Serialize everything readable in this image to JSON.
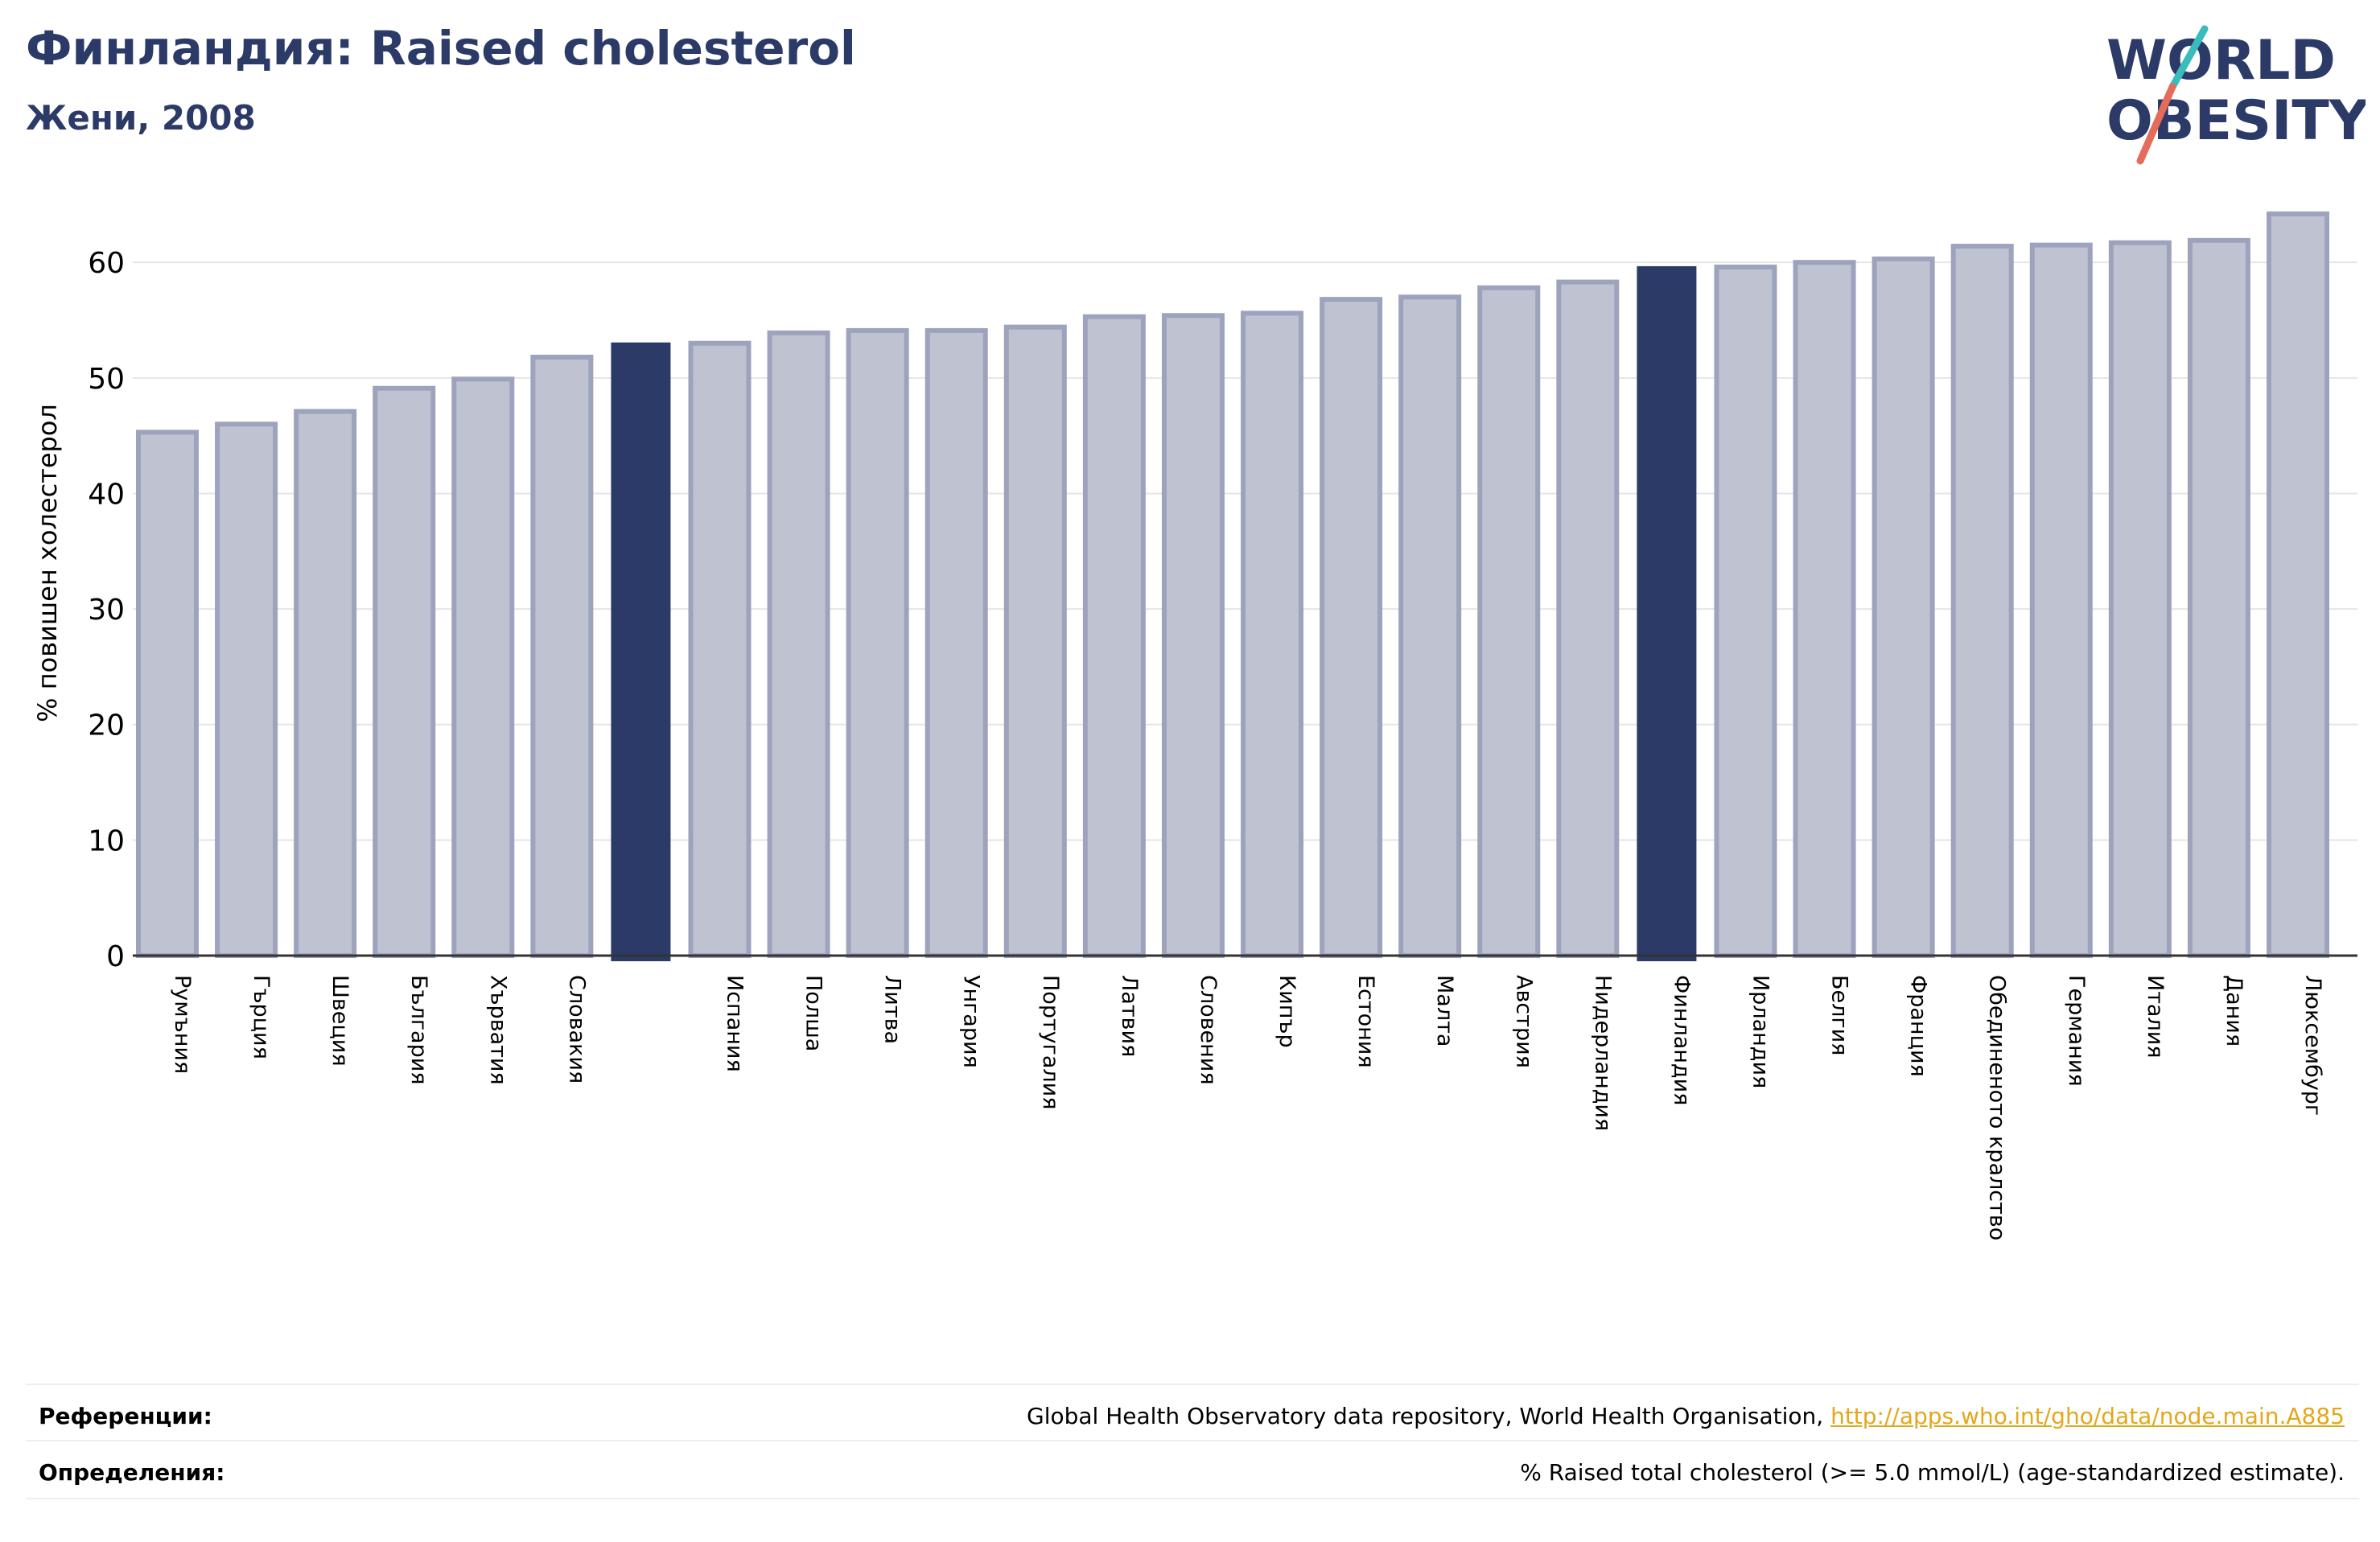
{
  "header": {
    "title": "Финландия: Raised cholesterol",
    "subtitle": "Жени, 2008"
  },
  "logo": {
    "line1": "WORLD",
    "line2": "OBESITY",
    "text_color": "#2b3a67",
    "slash_color_top": "#3bbcbc",
    "slash_color_bottom": "#e56b5b"
  },
  "colors": {
    "bar_fill": "#bfc2d0",
    "bar_stroke": "#9ea3bd",
    "highlight": "#2b3a67",
    "grid": "#e6e6e6",
    "axis": "#333333",
    "link": "#e3a71b"
  },
  "chart_data": {
    "type": "bar",
    "ylabel": "% повишен холестерол",
    "ylim": [
      0,
      66
    ],
    "yticks": [
      0,
      10,
      20,
      30,
      40,
      50,
      60
    ],
    "grid": true,
    "categories": [
      "Румъния",
      "Гърция",
      "Швеция",
      "България",
      "Хърватия",
      "Словакия",
      "",
      "Испания",
      "Полша",
      "Литва",
      "Унгария",
      "Португалия",
      "Латвия",
      "Словения",
      "Кипър",
      "Естония",
      "Малта",
      "Австрия",
      "Нидерландия",
      "Финландия",
      "Ирландия",
      "Белгия",
      "Франция",
      "Обединеното кралство",
      "Германия",
      "Италия",
      "Дания",
      "Люксембург"
    ],
    "values": [
      45.3,
      46.0,
      47.1,
      49.1,
      49.9,
      51.8,
      53.0,
      53.0,
      53.9,
      54.1,
      54.1,
      54.4,
      55.3,
      55.4,
      55.6,
      56.8,
      57.0,
      57.8,
      58.3,
      59.6,
      59.6,
      60.0,
      60.3,
      61.4,
      61.5,
      61.7,
      61.9,
      64.2
    ],
    "highlighted": [
      6,
      19
    ]
  },
  "footer": {
    "references_label": "Референции:",
    "references_text": "Global Health Observatory data repository, World Health Organisation, ",
    "references_link": "http://apps.who.int/gho/data/node.main.A885",
    "definitions_label": "Определения:",
    "definitions_text": "% Raised total cholesterol (>= 5.0 mmol/L) (age-standardized estimate)."
  }
}
